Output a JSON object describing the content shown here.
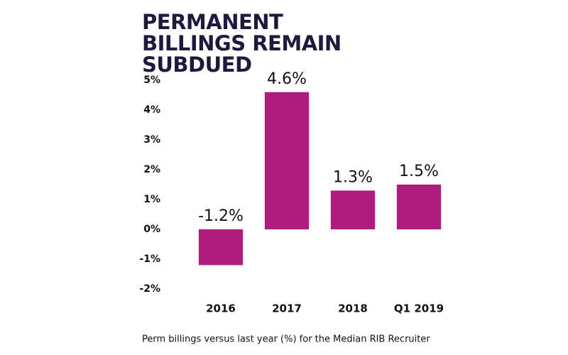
{
  "chart_data": {
    "type": "bar",
    "title": "PERMANENT BILLINGS REMAIN SUBDUED",
    "caption": "Perm billings versus last year (%) for the Median RIB Recruiter",
    "categories": [
      "2016",
      "2017",
      "2018",
      "Q1 2019"
    ],
    "values": [
      -1.2,
      4.6,
      1.3,
      1.5
    ],
    "value_labels": [
      "-1.2%",
      "4.6%",
      "1.3%",
      "1.5%"
    ],
    "color": "#b01c7e",
    "ylim": [
      -2,
      5
    ],
    "yticks": [
      {
        "value": -2,
        "label": "-2%"
      },
      {
        "value": -1,
        "label": "-1%"
      },
      {
        "value": 0,
        "label": "0%"
      },
      {
        "value": 1,
        "label": "1%"
      },
      {
        "value": 2,
        "label": "2%"
      },
      {
        "value": 3,
        "label": "3%"
      },
      {
        "value": 4,
        "label": "4%"
      },
      {
        "value": 5,
        "label": "5%"
      }
    ],
    "grid": false
  }
}
